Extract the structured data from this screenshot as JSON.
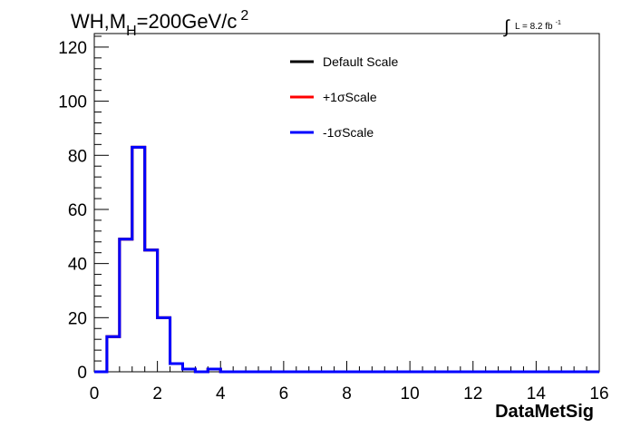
{
  "chart_data": {
    "type": "histogram",
    "title_parts": {
      "base": "WH,M",
      "sub": "H",
      "mid": "=200GeV/c",
      "sup": "2"
    },
    "lumi_parts": {
      "integral": "∫",
      "text": "L = 8.2 fb",
      "sup": "-1"
    },
    "xlabel": "DataMetSig",
    "ylabel": "",
    "xlim": [
      0,
      16
    ],
    "ylim": [
      0,
      125
    ],
    "x_ticks": [
      "0",
      "2",
      "4",
      "6",
      "8",
      "10",
      "12",
      "14",
      "16"
    ],
    "y_ticks": [
      "0",
      "20",
      "40",
      "60",
      "80",
      "100",
      "120"
    ],
    "bin_width": 0.4,
    "bin_edges_start": 0,
    "series": [
      {
        "name": "Default Scale",
        "color": "#000000",
        "values": [
          0,
          13,
          49,
          83,
          45,
          20,
          3,
          1,
          0,
          1,
          0,
          0,
          0,
          0,
          0,
          0,
          0,
          0,
          0,
          0,
          0,
          0,
          0,
          0,
          0,
          0,
          0,
          0,
          0,
          0,
          0,
          0,
          0,
          0,
          0,
          0,
          0,
          0,
          0,
          0
        ]
      },
      {
        "name": "+1σScale",
        "color": "#ff0000",
        "values": [
          0,
          13,
          49,
          83,
          45,
          20,
          3,
          1,
          0,
          1,
          0,
          0,
          0,
          0,
          0,
          0,
          0,
          0,
          0,
          0,
          0,
          0,
          0,
          0,
          0,
          0,
          0,
          0,
          0,
          0,
          0,
          0,
          0,
          0,
          0,
          0,
          0,
          0,
          0,
          0
        ]
      },
      {
        "name": "-1σScale",
        "color": "#0000ff",
        "values": [
          0,
          13,
          49,
          83,
          45,
          20,
          3,
          1,
          0,
          1,
          0,
          0,
          0,
          0,
          0,
          0,
          0,
          0,
          0,
          0,
          0,
          0,
          0,
          0,
          0,
          0,
          0,
          0,
          0,
          0,
          0,
          0,
          0,
          0,
          0,
          0,
          0,
          0,
          0,
          0
        ]
      }
    ],
    "legend_position": "top-center",
    "grid": false
  }
}
